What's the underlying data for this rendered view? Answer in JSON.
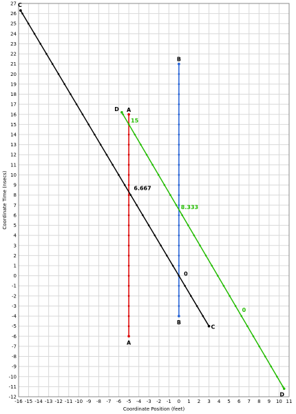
{
  "chart_data": {
    "type": "line",
    "xlabel": "Coordinate Position (feet)",
    "ylabel": "Coordinate Time (nsecs)",
    "xlim": [
      -16,
      11
    ],
    "ylim": [
      -12,
      27
    ],
    "grid": true,
    "series": [
      {
        "name": "A",
        "color": "#dd0000",
        "points": [
          [
            -5,
            -6
          ],
          [
            -5,
            16
          ]
        ],
        "start_label": "A",
        "end_label": "A",
        "annotation": {
          "text": "",
          "at": [
            -5,
            8.333
          ]
        }
      },
      {
        "name": "B",
        "color": "#1f5fd6",
        "points": [
          [
            0,
            -4
          ],
          [
            0,
            21
          ]
        ],
        "start_label": "B",
        "end_label": "B",
        "annotation": {
          "text": "",
          "at": [
            0,
            0
          ]
        }
      },
      {
        "name": "C",
        "color": "#000000",
        "points": [
          [
            -15.8,
            26.3
          ],
          [
            3,
            -5
          ]
        ],
        "start_label": "C",
        "end_label": "C",
        "annotation": {
          "text": "",
          "at": [
            0,
            0
          ]
        }
      },
      {
        "name": "D",
        "color": "#22bb00",
        "points": [
          [
            -5.7,
            16.2
          ],
          [
            10.5,
            -11.2
          ]
        ],
        "start_label": "D",
        "end_label": "D",
        "annotation": {
          "text": "",
          "at": [
            0,
            0
          ]
        }
      }
    ],
    "annotations": [
      {
        "text": "15",
        "x": -4.8,
        "y": 15.2,
        "color": "#22bb00"
      },
      {
        "text": "6.667",
        "x": -4.5,
        "y": 8.5,
        "color": "#000000"
      },
      {
        "text": "8.333",
        "x": 0.2,
        "y": 6.6,
        "color": "#22bb00"
      },
      {
        "text": "0",
        "x": 0.5,
        "y": 0,
        "color": "#000000"
      },
      {
        "text": "0",
        "x": 6.3,
        "y": -3.6,
        "color": "#22bb00"
      }
    ]
  }
}
